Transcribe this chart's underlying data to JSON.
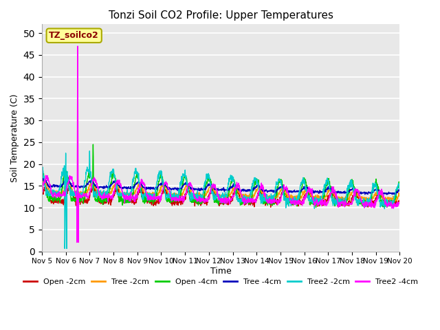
{
  "title": "Tonzi Soil CO2 Profile: Upper Temperatures",
  "ylabel": "Soil Temperature (C)",
  "xlabel": "Time",
  "annotation": "TZ_soilco2",
  "ylim": [
    0,
    52
  ],
  "yticks": [
    0,
    5,
    10,
    15,
    20,
    25,
    30,
    35,
    40,
    45,
    50
  ],
  "bg_color": "#e8e8e8",
  "series_colors": {
    "Open -2cm": "#cc0000",
    "Tree -2cm": "#ff9900",
    "Open -4cm": "#00cc00",
    "Tree -4cm": "#0000bb",
    "Tree2 -2cm": "#00cccc",
    "Tree2 -4cm": "#ff00ff"
  },
  "n_days": 15,
  "pts_per_day": 96
}
